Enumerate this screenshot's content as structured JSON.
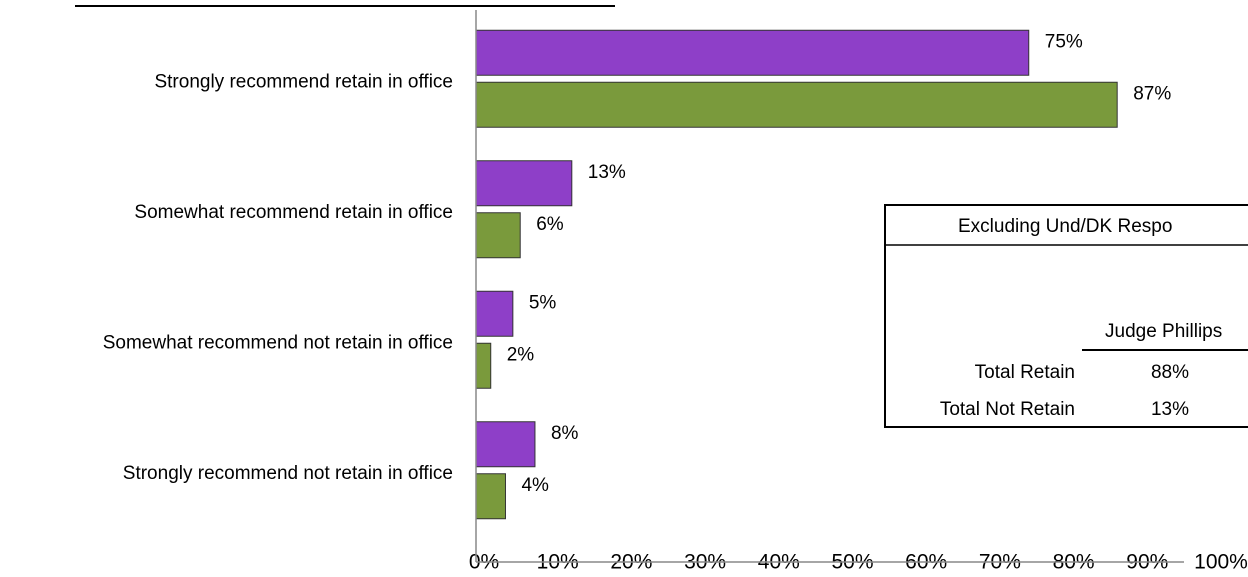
{
  "chart_data": {
    "type": "bar",
    "orientation": "horizontal",
    "categories": [
      "Strongly recommend retain in office",
      "Somewhat recommend retain in office",
      "Somewhat recommend not retain in office",
      "Strongly recommend not retain in office"
    ],
    "series": [
      {
        "color": "#8e3fc8",
        "values": [
          75,
          13,
          5,
          8
        ],
        "value_labels": [
          "75%",
          "13%",
          "5%",
          "8%"
        ]
      },
      {
        "color": "#7a9a3c",
        "values": [
          87,
          6,
          2,
          4
        ],
        "value_labels": [
          "87%",
          "6%",
          "2%",
          "4%"
        ]
      }
    ],
    "xlim": [
      0,
      100
    ],
    "xticks": [
      {
        "value": 0,
        "label": "0%"
      },
      {
        "value": 10,
        "label": "10%"
      },
      {
        "value": 20,
        "label": "20%"
      },
      {
        "value": 30,
        "label": "30%"
      },
      {
        "value": 40,
        "label": "40%"
      },
      {
        "value": 50,
        "label": "50%"
      },
      {
        "value": 60,
        "label": "60%"
      },
      {
        "value": 70,
        "label": "70%"
      },
      {
        "value": 80,
        "label": "80%"
      },
      {
        "value": 90,
        "label": "90%"
      },
      {
        "value": 100,
        "label": "100%"
      }
    ],
    "grid": false
  },
  "table": {
    "title": "Excluding Und/DK Respo",
    "header": "Judge Phillips",
    "rows": [
      [
        "Total Retain",
        "88%"
      ],
      [
        "Total Not Retain",
        "13%"
      ]
    ]
  }
}
